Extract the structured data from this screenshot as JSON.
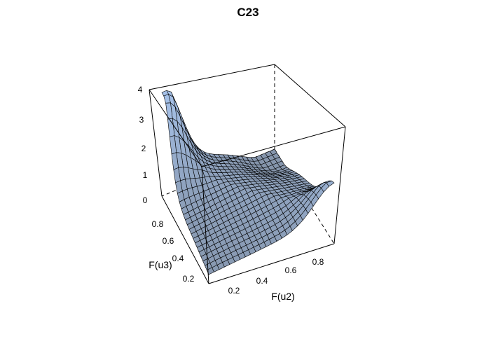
{
  "chart_data": {
    "type": "surface",
    "title": "C23",
    "xlabel": "F(u2)",
    "ylabel": "F(u3)",
    "zlabel": "",
    "x_ticks": [
      "0.2",
      "0.4",
      "0.6",
      "0.8"
    ],
    "y_ticks": [
      "0.2",
      "0.4",
      "0.6",
      "0.8"
    ],
    "z_ticks": [
      "0",
      "1",
      "2",
      "3",
      "4"
    ],
    "xlim": [
      0,
      1
    ],
    "ylim": [
      0,
      1
    ],
    "zlim": [
      0,
      4
    ],
    "surface_color": "#a9c6ef",
    "grid_lines": "black"
  }
}
